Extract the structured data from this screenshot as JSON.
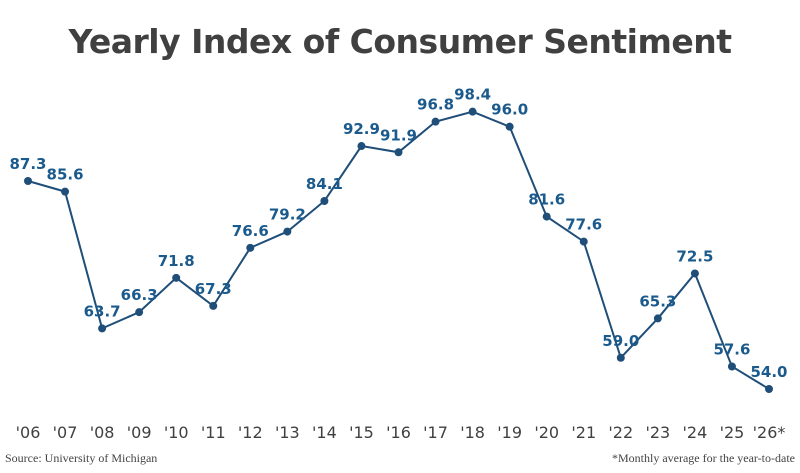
{
  "chart_data": {
    "type": "line",
    "title": "Yearly Index of Consumer Sentiment",
    "categories": [
      "'06",
      "'07",
      "'08",
      "'09",
      "'10",
      "'11",
      "'12",
      "'13",
      "'14",
      "'15",
      "'16",
      "'17",
      "'18",
      "'19",
      "'20",
      "'21",
      "'22",
      "'23",
      "'24",
      "'25",
      "'26*"
    ],
    "values": [
      87.3,
      85.6,
      63.7,
      66.3,
      71.8,
      67.3,
      76.6,
      79.2,
      84.1,
      92.9,
      91.9,
      96.8,
      98.4,
      96.0,
      81.6,
      77.6,
      59.0,
      65.3,
      72.5,
      57.6,
      54.0
    ],
    "xlabel": "",
    "ylabel": "",
    "grid": false,
    "line_color": "#1f4e79",
    "label_color": "#1b5a8c"
  },
  "footer": {
    "source": "Source: University of Michigan",
    "note": "*Monthly average for the year-to-date"
  }
}
